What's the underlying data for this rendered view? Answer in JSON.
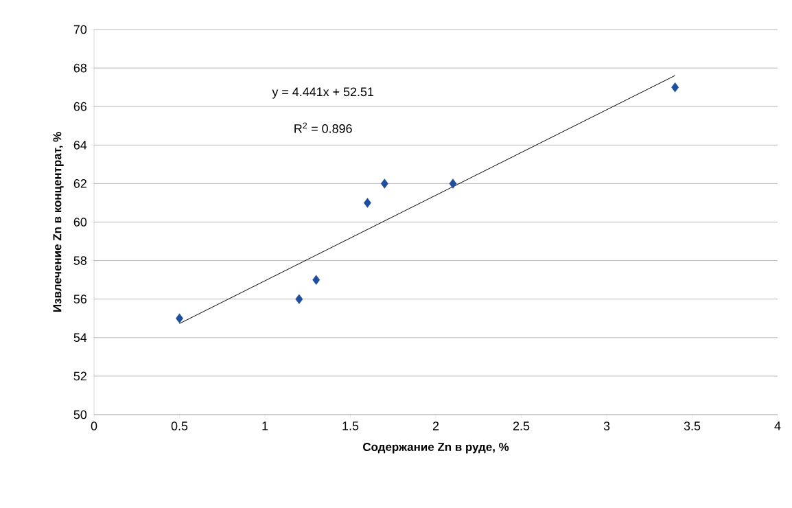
{
  "chart_data": {
    "type": "scatter",
    "xlabel": "Содержание Zn в руде, %",
    "ylabel": "Извлечение Zn  в концентрат, %",
    "xlim": [
      0,
      4
    ],
    "xticks": [
      0,
      0.5,
      1,
      1.5,
      2,
      2.5,
      3,
      3.5,
      4
    ],
    "ylim": [
      50,
      70
    ],
    "yticks": [
      50,
      52,
      54,
      56,
      58,
      60,
      62,
      64,
      66,
      68,
      70
    ],
    "grid": "y",
    "series": [
      {
        "marker": "diamond",
        "color": "#1f4e9c",
        "x": [
          0.5,
          1.2,
          1.3,
          1.6,
          1.7,
          2.1,
          3.4
        ],
        "values": [
          55,
          56,
          57,
          61,
          62,
          62,
          67
        ]
      },
      {
        "type": "line",
        "color": "#000000",
        "line_style": "solid",
        "x": [
          0.5,
          3.4
        ],
        "values": [
          54.73,
          67.61
        ]
      }
    ],
    "annotations": [
      "y = 4.441x + 52.51",
      "R$^{2}$ = 0.896"
    ]
  }
}
